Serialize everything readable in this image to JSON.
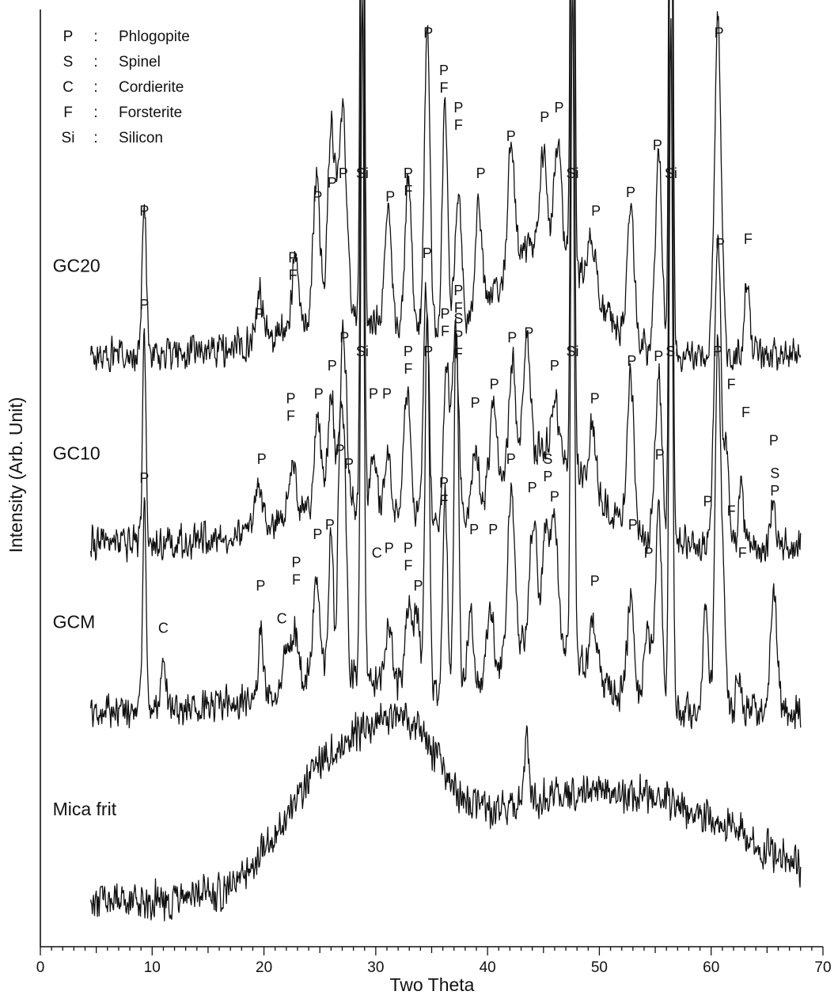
{
  "chart_data": {
    "type": "line",
    "title": "",
    "xlabel": "Two Theta",
    "ylabel": "Intensity (Arb. Unit)",
    "xlim": [
      0,
      70
    ],
    "x_ticks": [
      0,
      10,
      20,
      30,
      40,
      50,
      60,
      70
    ],
    "x_minor_step": 1,
    "y_ticks": "none",
    "grid": false,
    "legend": {
      "placement": "top-left",
      "entries": [
        {
          "symbol": "P",
          "sep": ":",
          "name": "Phlogopite"
        },
        {
          "symbol": "S",
          "sep": ":",
          "name": "Spinel"
        },
        {
          "symbol": "C",
          "sep": ":",
          "name": "Cordierite"
        },
        {
          "symbol": "F",
          "sep": ":",
          "name": "Forsterite"
        },
        {
          "symbol": "Si",
          "sep": ":",
          "name": "Silicon"
        }
      ]
    },
    "series": [
      {
        "name": "GC20",
        "x_range": [
          4.5,
          68
        ],
        "baseline": 63,
        "noise": 2.2,
        "broad": [
          [
            27,
            4,
            6
          ],
          [
            45,
            12,
            4
          ]
        ],
        "peaks": [
          [
            9.3,
            16,
            0.2
          ],
          [
            19.6,
            5,
            0.3
          ],
          [
            22.8,
            7,
            0.3
          ],
          [
            24.7,
            16,
            0.3
          ],
          [
            26,
            20,
            0.3
          ],
          [
            27,
            22,
            0.4
          ],
          [
            28.8,
            102,
            0.15
          ],
          [
            31.1,
            12,
            0.3
          ],
          [
            32.9,
            17,
            0.3
          ],
          [
            34.6,
            33,
            0.25
          ],
          [
            36.2,
            24,
            0.25
          ],
          [
            37.4,
            15,
            0.3
          ],
          [
            39.2,
            11,
            0.3
          ],
          [
            42.1,
            13,
            0.3
          ],
          [
            45,
            10,
            0.3
          ],
          [
            46.3,
            12,
            0.3
          ],
          [
            47.6,
            102,
            0.15
          ],
          [
            49.3,
            6,
            0.4
          ],
          [
            52.8,
            14,
            0.3
          ],
          [
            55.3,
            21,
            0.3
          ],
          [
            56.4,
            102,
            0.15
          ],
          [
            60.6,
            36,
            0.3
          ],
          [
            63.2,
            9,
            0.2
          ]
        ],
        "peak_labels": [
          {
            "x": 9.3,
            "y": 78,
            "text": "P"
          },
          {
            "x": 19.6,
            "y": 67,
            "text": "P"
          },
          {
            "x": 22.6,
            "y": 73,
            "text": "P F"
          },
          {
            "x": 24.8,
            "y": 79.5,
            "text": "P"
          },
          {
            "x": 26.1,
            "y": 81,
            "text": "P"
          },
          {
            "x": 27.1,
            "y": 82,
            "text": "P"
          },
          {
            "x": 28.8,
            "y": 103,
            "text": "Si"
          },
          {
            "x": 31.3,
            "y": 79.5,
            "text": "P"
          },
          {
            "x": 32.9,
            "y": 82,
            "text": "P F"
          },
          {
            "x": 34.7,
            "y": 97,
            "text": "P"
          },
          {
            "x": 36.1,
            "y": 93,
            "text": "P F"
          },
          {
            "x": 37.4,
            "y": 89,
            "text": "P F"
          },
          {
            "x": 39.4,
            "y": 82,
            "text": "P"
          },
          {
            "x": 42.1,
            "y": 86,
            "text": "P"
          },
          {
            "x": 45.1,
            "y": 88,
            "text": "P"
          },
          {
            "x": 46.4,
            "y": 89,
            "text": "P"
          },
          {
            "x": 47.6,
            "y": 103,
            "text": "Si"
          },
          {
            "x": 49.7,
            "y": 78,
            "text": "P"
          },
          {
            "x": 52.8,
            "y": 80,
            "text": "P"
          },
          {
            "x": 55.2,
            "y": 85,
            "text": "P"
          },
          {
            "x": 56.4,
            "y": 103,
            "text": "Si"
          },
          {
            "x": 60.7,
            "y": 97,
            "text": "P"
          },
          {
            "x": 63.3,
            "y": 75,
            "text": "F"
          }
        ]
      },
      {
        "name": "GC10",
        "x_range": [
          4.5,
          68
        ],
        "baseline": 43,
        "noise": 2.2,
        "broad": [
          [
            27,
            4,
            6
          ],
          [
            45,
            10,
            4
          ]
        ],
        "peaks": [
          [
            9.3,
            22,
            0.15
          ],
          [
            19.5,
            5,
            0.3
          ],
          [
            22.6,
            5,
            0.3
          ],
          [
            24.8,
            9,
            0.3
          ],
          [
            26,
            12,
            0.3
          ],
          [
            27.1,
            18,
            0.3
          ],
          [
            28.8,
            88,
            0.15
          ],
          [
            29.8,
            6,
            0.3
          ],
          [
            31.1,
            6,
            0.3
          ],
          [
            32.8,
            14,
            0.3
          ],
          [
            34.5,
            25,
            0.25
          ],
          [
            36.3,
            16,
            0.25
          ],
          [
            37.1,
            20,
            0.3
          ],
          [
            38.9,
            7,
            0.3
          ],
          [
            40.5,
            9,
            0.3
          ],
          [
            42.2,
            12,
            0.3
          ],
          [
            43.5,
            12,
            0.3
          ],
          [
            46,
            6,
            0.3
          ],
          [
            47.6,
            88,
            0.15
          ],
          [
            49.4,
            7,
            0.3
          ],
          [
            52.8,
            16,
            0.3
          ],
          [
            55.3,
            18,
            0.3
          ],
          [
            56.4,
            88,
            0.15
          ],
          [
            60.6,
            33,
            0.3
          ],
          [
            61.4,
            9,
            0.2
          ],
          [
            62.7,
            7,
            0.2
          ],
          [
            65.5,
            5,
            0.2
          ]
        ],
        "peak_labels": [
          {
            "x": 9.3,
            "y": 68,
            "text": "P"
          },
          {
            "x": 19.8,
            "y": 51.5,
            "text": "P"
          },
          {
            "x": 22.4,
            "y": 58,
            "text": "P F"
          },
          {
            "x": 24.9,
            "y": 58.5,
            "text": "P"
          },
          {
            "x": 26.1,
            "y": 61.5,
            "text": "P"
          },
          {
            "x": 27.2,
            "y": 64.5,
            "text": "P"
          },
          {
            "x": 28.8,
            "y": 82,
            "text": "Si"
          },
          {
            "x": 29.8,
            "y": 58.5,
            "text": "P"
          },
          {
            "x": 31,
            "y": 58.5,
            "text": "P"
          },
          {
            "x": 32.9,
            "y": 63,
            "text": "P F"
          },
          {
            "x": 34.6,
            "y": 73.5,
            "text": "P"
          },
          {
            "x": 36.2,
            "y": 67,
            "text": "P F"
          },
          {
            "x": 37.4,
            "y": 69.5,
            "text": "P F"
          },
          {
            "x": 38.9,
            "y": 57.5,
            "text": "P"
          },
          {
            "x": 40.6,
            "y": 59.5,
            "text": "P"
          },
          {
            "x": 42.2,
            "y": 64.5,
            "text": "P"
          },
          {
            "x": 43.7,
            "y": 65,
            "text": "P"
          },
          {
            "x": 46,
            "y": 61.5,
            "text": "P"
          },
          {
            "x": 47.6,
            "y": 82,
            "text": "Si"
          },
          {
            "x": 49.6,
            "y": 58,
            "text": "P"
          },
          {
            "x": 52.9,
            "y": 62,
            "text": "P"
          },
          {
            "x": 55.3,
            "y": 62.5,
            "text": "P"
          },
          {
            "x": 56.4,
            "y": 82,
            "text": "Si"
          },
          {
            "x": 60.8,
            "y": 74.5,
            "text": "P"
          },
          {
            "x": 61.8,
            "y": 59.5,
            "text": "F"
          },
          {
            "x": 63.1,
            "y": 56.5,
            "text": "F"
          },
          {
            "x": 65.6,
            "y": 53.5,
            "text": "P"
          }
        ]
      },
      {
        "name": "GCM",
        "x_range": [
          4.5,
          68
        ],
        "baseline": 25,
        "noise": 2.2,
        "broad": [
          [
            27,
            4,
            6
          ],
          [
            45,
            8,
            4
          ]
        ],
        "peaks": [
          [
            9.3,
            23,
            0.15
          ],
          [
            11,
            5,
            0.3
          ],
          [
            19.7,
            7,
            0.2
          ],
          [
            22,
            4,
            0.3
          ],
          [
            22.8,
            6,
            0.3
          ],
          [
            24.7,
            11,
            0.3
          ],
          [
            26,
            16,
            0.2
          ],
          [
            26.8,
            24,
            0.2
          ],
          [
            27.2,
            22,
            0.2
          ],
          [
            28.8,
            72,
            0.15
          ],
          [
            31.2,
            6,
            0.3
          ],
          [
            32.9,
            9,
            0.3
          ],
          [
            33.7,
            8,
            0.3
          ],
          [
            34.6,
            40,
            0.2
          ],
          [
            36.2,
            22,
            0.2
          ],
          [
            37.2,
            40,
            0.2
          ],
          [
            38.5,
            7,
            0.3
          ],
          [
            40.2,
            7,
            0.3
          ],
          [
            42.1,
            18,
            0.3
          ],
          [
            44.1,
            13,
            0.3
          ],
          [
            45.2,
            12,
            0.3
          ],
          [
            46,
            13,
            0.3
          ],
          [
            47.6,
            72,
            0.15
          ],
          [
            49.5,
            5,
            0.3
          ],
          [
            52.8,
            11,
            0.3
          ],
          [
            54.3,
            8,
            0.3
          ],
          [
            55.3,
            21,
            0.3
          ],
          [
            56.4,
            72,
            0.15
          ],
          [
            59.5,
            12,
            0.2
          ],
          [
            60.6,
            40,
            0.25
          ],
          [
            61.1,
            10,
            0.2
          ],
          [
            62.4,
            5,
            0.2
          ],
          [
            65.6,
            12,
            0.3
          ]
        ],
        "peak_labels": [
          {
            "x": 9.3,
            "y": 49.5,
            "text": "P"
          },
          {
            "x": 11,
            "y": 33.5,
            "text": "C"
          },
          {
            "x": 19.7,
            "y": 38,
            "text": "P"
          },
          {
            "x": 21.6,
            "y": 34.5,
            "text": "C"
          },
          {
            "x": 22.9,
            "y": 40.5,
            "text": "P F"
          },
          {
            "x": 24.8,
            "y": 43.5,
            "text": "P"
          },
          {
            "x": 25.9,
            "y": 44.5,
            "text": "P"
          },
          {
            "x": 26.8,
            "y": 52.5,
            "text": "P"
          },
          {
            "x": 27.6,
            "y": 51,
            "text": "P"
          },
          {
            "x": 28.8,
            "y": 63,
            "text": "Si"
          },
          {
            "x": 30.1,
            "y": 41.5,
            "text": "C"
          },
          {
            "x": 31.2,
            "y": 42,
            "text": "P"
          },
          {
            "x": 32.9,
            "y": 42,
            "text": "P F"
          },
          {
            "x": 33.8,
            "y": 38,
            "text": "P"
          },
          {
            "x": 34.7,
            "y": 63,
            "text": "P"
          },
          {
            "x": 36.1,
            "y": 49,
            "text": "P F"
          },
          {
            "x": 37.4,
            "y": 66.5,
            "text": "S P F"
          },
          {
            "x": 38.8,
            "y": 44,
            "text": "P"
          },
          {
            "x": 40.5,
            "y": 44,
            "text": "P"
          },
          {
            "x": 42.1,
            "y": 51.5,
            "text": "P"
          },
          {
            "x": 44,
            "y": 48.5,
            "text": "P"
          },
          {
            "x": 45.4,
            "y": 51.5,
            "text": "S P"
          },
          {
            "x": 46,
            "y": 47.5,
            "text": "P"
          },
          {
            "x": 47.6,
            "y": 63,
            "text": "Si"
          },
          {
            "x": 49.6,
            "y": 38.5,
            "text": "P"
          },
          {
            "x": 53,
            "y": 44.5,
            "text": "P"
          },
          {
            "x": 54.4,
            "y": 41.5,
            "text": "P"
          },
          {
            "x": 55.4,
            "y": 52,
            "text": "P"
          },
          {
            "x": 56.5,
            "y": 63,
            "text": "Si"
          },
          {
            "x": 59.7,
            "y": 47,
            "text": "P"
          },
          {
            "x": 60.6,
            "y": 63,
            "text": "P"
          },
          {
            "x": 61.8,
            "y": 46,
            "text": "F"
          },
          {
            "x": 62.8,
            "y": 41.5,
            "text": "F"
          },
          {
            "x": 65.7,
            "y": 50,
            "text": "S P"
          }
        ]
      },
      {
        "name": "Mica frit",
        "x_range": [
          4.5,
          68
        ],
        "baseline": 5,
        "noise": 2.4,
        "broad": [
          [
            26.5,
            14,
            4.5
          ],
          [
            33,
            10,
            3
          ],
          [
            44,
            9,
            9
          ],
          [
            58,
            7,
            8
          ]
        ],
        "peaks": [
          [
            43.5,
            7,
            0.2
          ]
        ],
        "peak_labels": []
      }
    ]
  }
}
